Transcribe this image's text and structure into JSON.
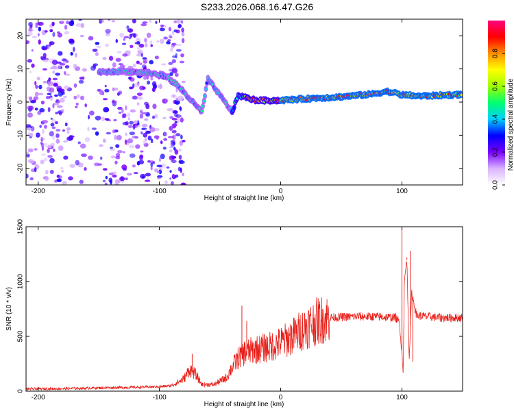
{
  "title": "S233.2026.068.16.47.G26",
  "chart_data": [
    {
      "type": "heatmap",
      "name": "spectrogram",
      "xlabel": "Height of straight line (km)",
      "ylabel": "Frequency (Hz)",
      "xlim": [
        -210,
        150
      ],
      "ylim": [
        -25,
        25
      ],
      "xticks": [
        -200,
        -100,
        0,
        100
      ],
      "yticks": [
        -20,
        -10,
        0,
        10,
        20
      ],
      "colorbar": {
        "label": "Normalized spectral amplitude",
        "range": [
          0,
          1
        ],
        "ticks": [
          "0.0",
          "0.2",
          "0.4",
          "0.6",
          "0.8"
        ],
        "colors": [
          "#ffffff",
          "#d9b3ff",
          "#7a00ff",
          "#0000ff",
          "#00d0ff",
          "#00ff70",
          "#a0ff00",
          "#ffff00",
          "#ff9000",
          "#ff0000",
          "#ff0080"
        ]
      },
      "ridge": [
        {
          "x": -150,
          "y": 9.0
        },
        {
          "x": -130,
          "y": 9.3
        },
        {
          "x": -110,
          "y": 8.8
        },
        {
          "x": -95,
          "y": 8.0
        },
        {
          "x": -85,
          "y": 5.0
        },
        {
          "x": -75,
          "y": 1.0
        },
        {
          "x": -65,
          "y": -3.0
        },
        {
          "x": -60,
          "y": 7.0
        },
        {
          "x": -50,
          "y": 2.0
        },
        {
          "x": -40,
          "y": -3.0
        },
        {
          "x": -35,
          "y": 2.0
        },
        {
          "x": -20,
          "y": 0.5
        },
        {
          "x": 0,
          "y": 0.5
        },
        {
          "x": 20,
          "y": 1.0
        },
        {
          "x": 50,
          "y": 1.6
        },
        {
          "x": 75,
          "y": 2.4
        },
        {
          "x": 88,
          "y": 3.2
        },
        {
          "x": 100,
          "y": 2.2
        },
        {
          "x": 115,
          "y": 1.8
        },
        {
          "x": 150,
          "y": 2.3
        }
      ]
    },
    {
      "type": "line",
      "name": "snr",
      "xlabel": "Height of straight line (km)",
      "ylabel": "SNR (10 * v/v)",
      "xlim": [
        -210,
        150
      ],
      "ylim": [
        0,
        1500
      ],
      "xticks": [
        -200,
        -100,
        0,
        100
      ],
      "yticks": [
        0,
        500,
        1000,
        1500
      ],
      "series": [
        {
          "name": "SNR",
          "color": "#e8201a",
          "points": [
            [
              -210,
              20
            ],
            [
              -180,
              22
            ],
            [
              -150,
              30
            ],
            [
              -120,
              35
            ],
            [
              -100,
              40
            ],
            [
              -90,
              50
            ],
            [
              -80,
              110
            ],
            [
              -75,
              200
            ],
            [
              -70,
              150
            ],
            [
              -65,
              60
            ],
            [
              -55,
              60
            ],
            [
              -45,
              120
            ],
            [
              -40,
              220
            ],
            [
              -35,
              300
            ],
            [
              -30,
              350
            ],
            [
              -20,
              380
            ],
            [
              -10,
              400
            ],
            [
              0,
              440
            ],
            [
              10,
              500
            ],
            [
              20,
              580
            ],
            [
              30,
              640
            ],
            [
              40,
              670
            ],
            [
              60,
              680
            ],
            [
              80,
              680
            ],
            [
              95,
              670
            ],
            [
              98,
              620
            ],
            [
              100,
              350
            ],
            [
              101,
              180
            ],
            [
              102,
              1000
            ],
            [
              104,
              1200
            ],
            [
              106,
              300
            ],
            [
              108,
              900
            ],
            [
              112,
              690
            ],
            [
              130,
              670
            ],
            [
              150,
              670
            ]
          ],
          "spikes": [
            {
              "x": -73,
              "y": 340
            },
            {
              "x": -32,
              "y": 780
            },
            {
              "x": -28,
              "y": 640
            },
            {
              "x": 100,
              "y": 1500
            },
            {
              "x": 101,
              "y": 170
            },
            {
              "x": 104,
              "y": 1220
            },
            {
              "x": 107,
              "y": 1280
            },
            {
              "x": 109,
              "y": 270
            }
          ]
        }
      ]
    }
  ]
}
